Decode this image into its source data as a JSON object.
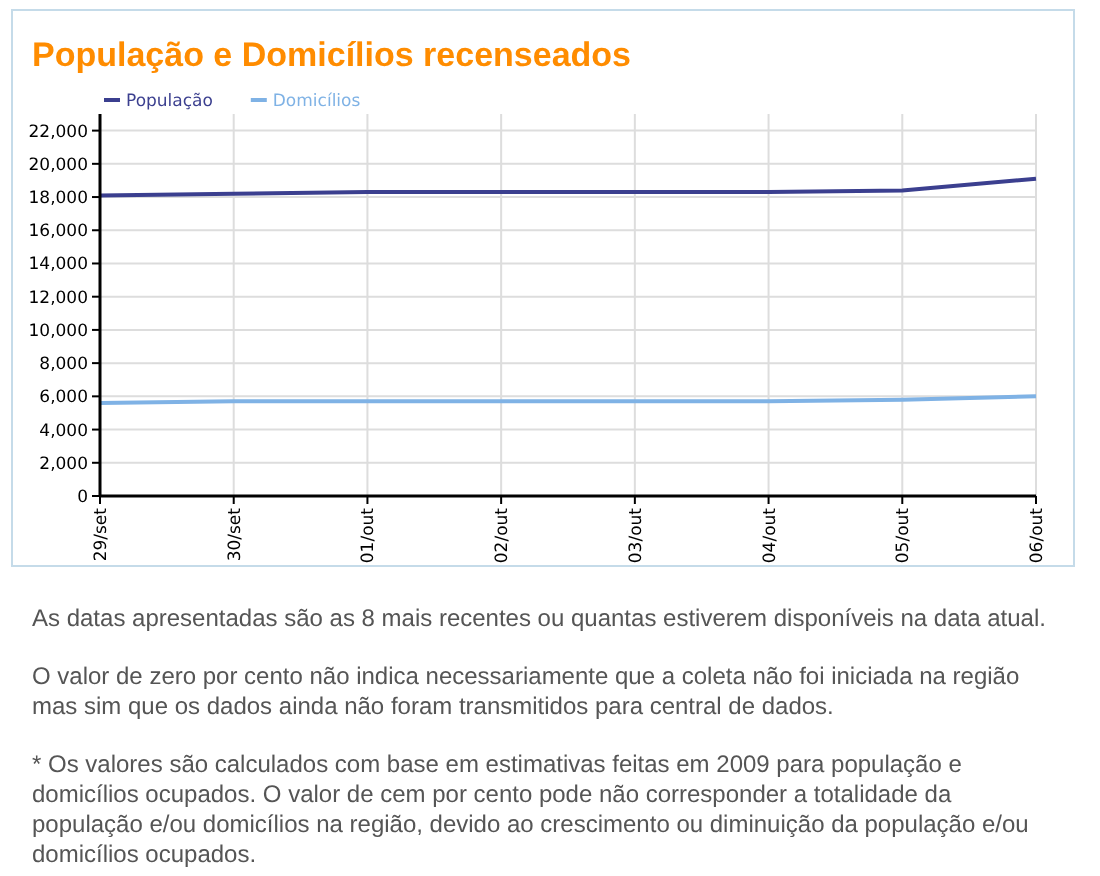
{
  "chart_data": {
    "type": "line",
    "title": "População e Domicílios recenseados",
    "categories": [
      "29/set",
      "30/set",
      "01/out",
      "02/out",
      "03/out",
      "04/out",
      "05/out",
      "06/out"
    ],
    "series": [
      {
        "name": "População",
        "color": "#3b3f8f",
        "values": [
          18100,
          18200,
          18300,
          18300,
          18300,
          18300,
          18400,
          19100
        ]
      },
      {
        "name": "Domicílios",
        "color": "#7fb2e5",
        "values": [
          5600,
          5700,
          5700,
          5700,
          5700,
          5700,
          5800,
          6000
        ]
      }
    ],
    "ylim": [
      0,
      23000
    ],
    "yticks": [
      {
        "value": 0,
        "label": "0"
      },
      {
        "value": 2000,
        "label": "2,000"
      },
      {
        "value": 4000,
        "label": "4,000"
      },
      {
        "value": 6000,
        "label": "6,000"
      },
      {
        "value": 8000,
        "label": "8,000"
      },
      {
        "value": 10000,
        "label": "10,000"
      },
      {
        "value": 12000,
        "label": "12,000"
      },
      {
        "value": 14000,
        "label": "14,000"
      },
      {
        "value": 16000,
        "label": "16,000"
      },
      {
        "value": 18000,
        "label": "18,000"
      },
      {
        "value": 20000,
        "label": "20,000"
      },
      {
        "value": 22000,
        "label": "22,000"
      }
    ],
    "grid": true,
    "legend": "top left",
    "marker": "none",
    "line_style": "solid",
    "annotations": [
      "As datas apresentadas são as 8 mais recentes ou quantas estiverem disponíveis na data atual.",
      "O valor de zero por cento não indica necessariamente que a coleta não foi iniciada na região mas sim que os dados ainda não foram transmitidos para central de dados.",
      "* Os valores são calculados com base em estimativas feitas em 2009 para população e domicílios ocupados. O valor de cem por cento pode não corresponder a totalidade da população e/ou domicílios na região, devido ao crescimento ou diminuição da população e/ou domicílios ocupados."
    ]
  }
}
